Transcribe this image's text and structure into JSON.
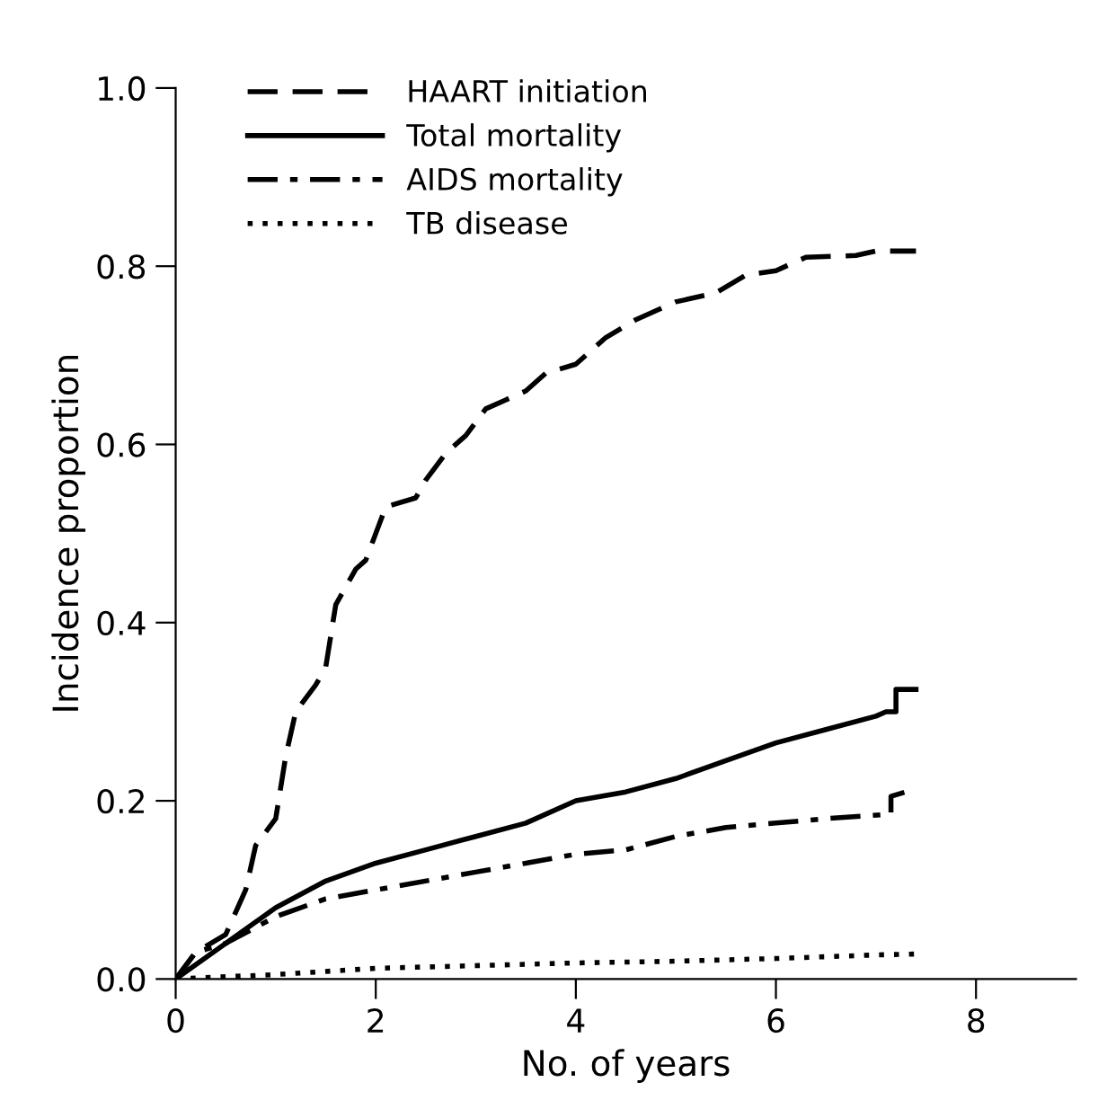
{
  "chart_data": {
    "type": "line",
    "xlabel": "No. of years",
    "ylabel": "Incidence proportion",
    "xlim": [
      0,
      9
    ],
    "ylim": [
      0,
      1.0
    ],
    "xticks": [
      0,
      2,
      4,
      6,
      8
    ],
    "yticks": [
      {
        "value": 0,
        "label": "0.0"
      },
      0.2,
      0.4,
      0.6,
      0.8,
      {
        "value": 1.0,
        "label": "1.0"
      }
    ],
    "grid": false,
    "legend": "top left",
    "marker": "none",
    "series": [
      {
        "name": "HAART initiation",
        "color": "#000000",
        "line_style": "dashed",
        "x": [
          0,
          0.2,
          0.5,
          0.7,
          0.8,
          1.0,
          1.1,
          1.2,
          1.4,
          1.5,
          1.6,
          1.8,
          1.9,
          2.0,
          2.1,
          2.4,
          2.5,
          2.7,
          2.9,
          3.1,
          3.3,
          3.5,
          3.7,
          4.0,
          4.3,
          4.6,
          5.0,
          5.4,
          5.7,
          6.0,
          6.3,
          6.8,
          7.0,
          7.4
        ],
        "values": [
          0,
          0.03,
          0.05,
          0.1,
          0.15,
          0.18,
          0.25,
          0.3,
          0.33,
          0.35,
          0.42,
          0.46,
          0.47,
          0.5,
          0.53,
          0.54,
          0.56,
          0.59,
          0.61,
          0.64,
          0.65,
          0.66,
          0.68,
          0.69,
          0.72,
          0.74,
          0.76,
          0.77,
          0.79,
          0.795,
          0.81,
          0.812,
          0.817,
          0.817
        ]
      },
      {
        "name": "Total mortality",
        "color": "#000000",
        "line_style": "solid",
        "x": [
          0,
          0.5,
          1,
          1.5,
          2,
          2.5,
          3,
          3.5,
          4,
          4.5,
          5,
          5.5,
          6,
          6.5,
          7.0,
          7.1,
          7.2,
          7.2,
          7.4
        ],
        "values": [
          0,
          0.04,
          0.08,
          0.11,
          0.13,
          0.145,
          0.16,
          0.175,
          0.2,
          0.21,
          0.225,
          0.245,
          0.265,
          0.28,
          0.295,
          0.3,
          0.3,
          0.325,
          0.325
        ]
      },
      {
        "name": "AIDS mortality",
        "color": "#000000",
        "line_style": "dashdot",
        "x": [
          0,
          0.2,
          0.5,
          1,
          1.5,
          2,
          3,
          3.5,
          4,
          4.5,
          5,
          5.5,
          6,
          6.5,
          7.15,
          7.15,
          7.3
        ],
        "values": [
          0,
          0.03,
          0.04,
          0.07,
          0.09,
          0.1,
          0.12,
          0.13,
          0.14,
          0.145,
          0.16,
          0.17,
          0.175,
          0.18,
          0.185,
          0.205,
          0.21
        ]
      },
      {
        "name": "TB disease",
        "color": "#000000",
        "line_style": "dotted",
        "x": [
          0,
          1,
          2,
          3,
          4,
          5,
          6,
          7,
          7.4
        ],
        "values": [
          0,
          0.005,
          0.012,
          0.015,
          0.018,
          0.02,
          0.023,
          0.027,
          0.028
        ]
      }
    ]
  }
}
